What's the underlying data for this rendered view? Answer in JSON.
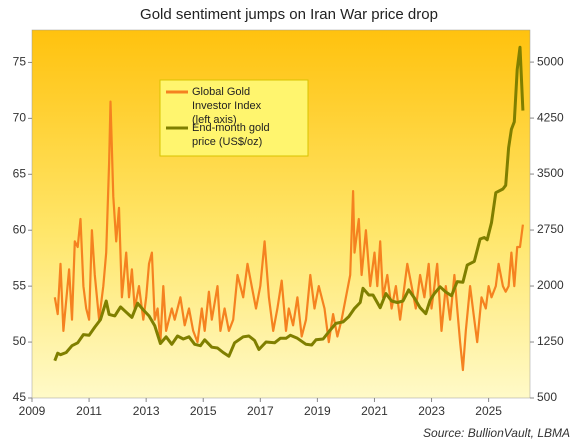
{
  "chart_data": {
    "type": "line",
    "title": "Gold sentiment jumps on Iran War price drop",
    "source": "Source:  BullionVault, LBMA",
    "xlim": [
      2009,
      2026.45
    ],
    "xticks": [
      2009,
      2011,
      2013,
      2015,
      2017,
      2019,
      2021,
      2023,
      2025
    ],
    "ylim": [
      45,
      77.9
    ],
    "yticks": [
      45,
      50,
      55,
      60,
      65,
      70,
      75
    ],
    "y2lim": [
      500,
      5430
    ],
    "y2ticks": [
      500,
      1250,
      2000,
      2750,
      3500,
      4250,
      5000
    ],
    "series": [
      {
        "name": "Global Gold Investor Index (left axis)",
        "color": "#f58220",
        "axis": "y",
        "x": [
          2009.8,
          2009.9,
          2010.0,
          2010.1,
          2010.3,
          2010.4,
          2010.5,
          2010.6,
          2010.7,
          2010.8,
          2010.9,
          2011.0,
          2011.1,
          2011.2,
          2011.35,
          2011.5,
          2011.6,
          2011.7,
          2011.75,
          2011.85,
          2011.95,
          2012.05,
          2012.15,
          2012.3,
          2012.4,
          2012.5,
          2012.6,
          2012.75,
          2012.9,
          2013.0,
          2013.1,
          2013.2,
          2013.3,
          2013.4,
          2013.5,
          2013.6,
          2013.7,
          2013.9,
          2014.0,
          2014.2,
          2014.35,
          2014.5,
          2014.65,
          2014.8,
          2014.95,
          2015.05,
          2015.2,
          2015.3,
          2015.5,
          2015.6,
          2015.75,
          2015.9,
          2016.05,
          2016.2,
          2016.4,
          2016.55,
          2016.7,
          2016.85,
          2017.0,
          2017.15,
          2017.3,
          2017.45,
          2017.6,
          2017.75,
          2017.9,
          2018.0,
          2018.15,
          2018.3,
          2018.45,
          2018.6,
          2018.75,
          2018.9,
          2019.05,
          2019.25,
          2019.4,
          2019.55,
          2019.7,
          2019.85,
          2020.0,
          2020.15,
          2020.25,
          2020.3,
          2020.45,
          2020.55,
          2020.7,
          2020.85,
          2021.0,
          2021.1,
          2021.2,
          2021.3,
          2021.45,
          2021.6,
          2021.75,
          2021.9,
          2022.0,
          2022.15,
          2022.3,
          2022.45,
          2022.6,
          2022.75,
          2022.9,
          2023.0,
          2023.1,
          2023.2,
          2023.35,
          2023.5,
          2023.65,
          2023.8,
          2023.9,
          2024.0,
          2024.1,
          2024.2,
          2024.35,
          2024.5,
          2024.6,
          2024.75,
          2024.9,
          2025.0,
          2025.1,
          2025.25,
          2025.35,
          2025.5,
          2025.6,
          2025.7,
          2025.8,
          2025.9,
          2026.0,
          2026.1,
          2026.2
        ],
        "values": [
          54,
          52.5,
          57,
          51,
          56.5,
          52,
          59,
          58.5,
          61,
          55,
          53,
          52,
          60,
          56,
          52,
          55,
          58,
          66,
          71.5,
          63,
          59,
          62,
          54,
          58,
          54,
          56.5,
          53,
          55,
          52,
          54,
          57,
          58,
          52,
          53,
          50,
          55,
          51,
          53,
          52,
          54,
          51.5,
          53,
          51,
          50,
          53,
          51,
          54.5,
          52,
          55,
          51,
          53,
          51,
          52,
          56,
          54,
          57,
          55,
          53,
          55,
          59,
          54,
          51,
          53,
          55.5,
          51,
          53,
          51.5,
          54,
          50.5,
          52,
          56,
          53,
          55,
          53,
          50,
          52.5,
          50.5,
          52,
          54,
          56,
          63.5,
          58,
          61,
          56,
          60,
          55,
          58,
          55,
          59,
          54,
          56,
          53,
          55,
          52,
          54,
          57,
          55,
          53,
          56,
          54,
          57,
          53,
          55,
          57,
          51,
          55,
          52,
          56,
          53,
          50,
          47.5,
          51,
          55,
          52,
          50,
          54,
          53,
          55,
          54,
          55,
          57,
          55,
          54.5,
          55,
          58,
          55,
          58.5,
          58.5,
          60.5
        ]
      },
      {
        "name": "End-month gold price (US$/oz)",
        "color": "#7f7f00",
        "axis": "y2",
        "x": [
          2009.8,
          2009.9,
          2010.0,
          2010.2,
          2010.4,
          2010.6,
          2010.8,
          2011.0,
          2011.2,
          2011.4,
          2011.6,
          2011.7,
          2011.9,
          2012.1,
          2012.3,
          2012.5,
          2012.7,
          2012.9,
          2013.1,
          2013.3,
          2013.5,
          2013.7,
          2013.9,
          2014.1,
          2014.3,
          2014.5,
          2014.7,
          2014.9,
          2015.05,
          2015.3,
          2015.5,
          2015.7,
          2015.9,
          2016.1,
          2016.4,
          2016.6,
          2016.8,
          2016.95,
          2017.2,
          2017.5,
          2017.7,
          2017.9,
          2018.05,
          2018.3,
          2018.6,
          2018.8,
          2018.95,
          2019.2,
          2019.45,
          2019.65,
          2019.9,
          2020.1,
          2020.3,
          2020.5,
          2020.6,
          2020.8,
          2020.95,
          2021.2,
          2021.4,
          2021.6,
          2021.8,
          2022.0,
          2022.2,
          2022.4,
          2022.6,
          2022.8,
          2022.95,
          2023.1,
          2023.3,
          2023.5,
          2023.7,
          2023.9,
          2024.1,
          2024.25,
          2024.5,
          2024.7,
          2024.85,
          2024.95,
          2025.1,
          2025.25,
          2025.5,
          2025.6,
          2025.7,
          2025.8,
          2025.9,
          2026.0,
          2026.1,
          2026.2
        ],
        "values": [
          1000,
          1100,
          1080,
          1110,
          1200,
          1240,
          1350,
          1340,
          1450,
          1550,
          1800,
          1620,
          1600,
          1720,
          1650,
          1580,
          1770,
          1680,
          1600,
          1470,
          1230,
          1320,
          1220,
          1330,
          1290,
          1320,
          1220,
          1200,
          1280,
          1180,
          1170,
          1110,
          1060,
          1240,
          1320,
          1330,
          1270,
          1150,
          1250,
          1240,
          1300,
          1300,
          1340,
          1300,
          1220,
          1210,
          1280,
          1290,
          1410,
          1500,
          1520,
          1590,
          1700,
          1780,
          1970,
          1880,
          1880,
          1710,
          1900,
          1800,
          1780,
          1800,
          1950,
          1840,
          1710,
          1630,
          1810,
          1900,
          1990,
          1920,
          1870,
          2060,
          2050,
          2280,
          2330,
          2630,
          2650,
          2620,
          2850,
          3250,
          3300,
          3350,
          3850,
          4100,
          4200,
          4900,
          5200,
          4350
        ]
      }
    ]
  }
}
